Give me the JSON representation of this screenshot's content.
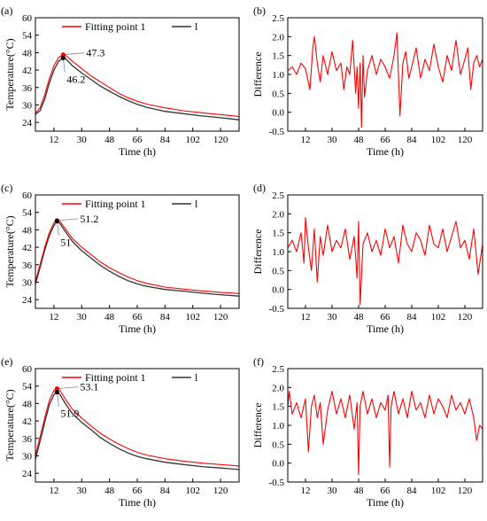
{
  "colors": {
    "fit": "#ff0000",
    "measured": "#333333",
    "diff": "#ff0000"
  },
  "chart_data": [
    {
      "panel": "(a)",
      "type": "line",
      "xlabel": "Time (h)",
      "ylabel": "Temperature(°C)",
      "xlim": [
        0,
        132
      ],
      "ylim": [
        21,
        60
      ],
      "xticks": [
        12,
        30,
        48,
        66,
        84,
        102,
        120
      ],
      "yticks": [
        24,
        30,
        36,
        42,
        48,
        54,
        60
      ],
      "legend": {
        "position": "top",
        "entries": [
          "Fitting point 1",
          "l"
        ]
      },
      "series": [
        {
          "name": "Fitting point 1",
          "color": "#ff0000",
          "x": [
            0,
            3,
            6,
            9,
            12,
            15,
            18,
            20,
            24,
            30,
            36,
            42,
            48,
            54,
            60,
            66,
            72,
            84,
            96,
            108,
            120,
            132
          ],
          "y": [
            27.2,
            29,
            33.5,
            39,
            43.5,
            46.3,
            47.3,
            46.9,
            45,
            42.5,
            40,
            38,
            36,
            34,
            32.5,
            31.3,
            30.3,
            29,
            28,
            27.3,
            26.7,
            26
          ]
        },
        {
          "name": "l",
          "color": "#333333",
          "x": [
            0,
            3,
            6,
            9,
            12,
            15,
            18,
            20,
            24,
            30,
            36,
            42,
            48,
            54,
            60,
            66,
            72,
            84,
            96,
            108,
            120,
            132
          ],
          "y": [
            26.8,
            28,
            32,
            37.5,
            42,
            45,
            46.2,
            45.7,
            43.5,
            41,
            38.8,
            36.5,
            34.7,
            33,
            31.5,
            30.2,
            29.2,
            27.8,
            27,
            26.2,
            25.6,
            24.9
          ]
        }
      ],
      "annotations": [
        {
          "text": "47.3",
          "x": 18,
          "y": 47.3,
          "series": "Fitting point 1"
        },
        {
          "text": "46.2",
          "x": 18,
          "y": 46.2,
          "series": "l"
        }
      ]
    },
    {
      "panel": "(b)",
      "type": "line",
      "xlabel": "Time (h)",
      "ylabel": "Difference",
      "xlim": [
        0,
        132
      ],
      "ylim": [
        -0.5,
        2.5
      ],
      "xticks": [
        12,
        30,
        48,
        66,
        84,
        102,
        120
      ],
      "yticks": [
        -0.5,
        0.0,
        0.5,
        1.0,
        1.5,
        2.0,
        2.5
      ],
      "series": [
        {
          "name": "",
          "color": "#ff0000",
          "x": [
            0,
            3,
            6,
            9,
            12,
            15,
            17,
            18,
            20,
            22,
            24,
            27,
            30,
            33,
            36,
            38,
            40,
            42,
            44,
            46,
            47,
            48,
            49,
            50,
            51,
            52,
            54,
            57,
            60,
            63,
            66,
            69,
            72,
            74,
            75,
            76,
            78,
            80,
            82,
            84,
            87,
            90,
            93,
            96,
            99,
            102,
            105,
            108,
            111,
            114,
            117,
            120,
            122,
            124,
            126,
            128,
            130,
            132
          ],
          "y": [
            1.1,
            1.2,
            1.0,
            1.3,
            1.15,
            0.6,
            1.7,
            2.0,
            1.3,
            0.8,
            1.5,
            1.0,
            1.6,
            1.1,
            1.3,
            0.6,
            1.2,
            1.0,
            1.9,
            0.5,
            1.2,
            0.1,
            1.3,
            -0.4,
            1.5,
            0.4,
            1.1,
            1.5,
            1.0,
            1.4,
            1.2,
            0.9,
            1.5,
            2.1,
            1.0,
            -0.1,
            1.3,
            1.6,
            0.9,
            1.2,
            1.7,
            0.9,
            1.4,
            1.1,
            1.8,
            1.2,
            0.8,
            1.5,
            1.1,
            1.9,
            1.0,
            1.4,
            1.7,
            0.6,
            1.3,
            1.5,
            1.2,
            1.4
          ]
        }
      ]
    },
    {
      "panel": "(c)",
      "type": "line",
      "xlabel": "Time (h)",
      "ylabel": "Temperature(°C)",
      "xlim": [
        0,
        132
      ],
      "ylim": [
        21,
        60
      ],
      "xticks": [
        12,
        30,
        48,
        66,
        84,
        102,
        120
      ],
      "yticks": [
        24,
        30,
        36,
        42,
        48,
        54,
        60
      ],
      "legend": {
        "position": "top",
        "entries": [
          "Fitting point 1",
          "l"
        ]
      },
      "series": [
        {
          "name": "Fitting point 1",
          "color": "#ff0000",
          "x": [
            0,
            3,
            6,
            9,
            12,
            14,
            16,
            20,
            24,
            30,
            36,
            42,
            48,
            54,
            60,
            66,
            72,
            84,
            96,
            108,
            120,
            132
          ],
          "y": [
            30.3,
            36,
            42,
            47,
            50.5,
            51.2,
            50.8,
            48,
            45,
            42,
            39.5,
            37,
            35,
            33.3,
            31.8,
            30.5,
            29.6,
            28.3,
            27.6,
            27,
            26.5,
            26.1
          ]
        },
        {
          "name": "l",
          "color": "#333333",
          "x": [
            0,
            3,
            6,
            9,
            12,
            14,
            16,
            20,
            24,
            30,
            36,
            42,
            48,
            54,
            60,
            66,
            72,
            84,
            96,
            108,
            120,
            132
          ],
          "y": [
            29.3,
            35,
            41,
            46,
            49.5,
            51,
            50,
            47,
            44,
            40.8,
            38.3,
            35.8,
            33.8,
            32,
            30.5,
            29.4,
            28.6,
            27.5,
            26.9,
            26.2,
            25.7,
            25.2
          ]
        }
      ],
      "annotations": [
        {
          "text": "51.2",
          "x": 14,
          "y": 51.2,
          "series": "Fitting point 1"
        },
        {
          "text": "51",
          "x": 14,
          "y": 51,
          "series": "l"
        }
      ]
    },
    {
      "panel": "(d)",
      "type": "line",
      "xlabel": "Time (h)",
      "ylabel": "Difference",
      "xlim": [
        0,
        132
      ],
      "ylim": [
        -0.5,
        2.5
      ],
      "xticks": [
        12,
        30,
        48,
        66,
        84,
        102,
        120
      ],
      "yticks": [
        -0.5,
        0.0,
        0.5,
        1.0,
        1.5,
        2.0,
        2.5
      ],
      "series": [
        {
          "name": "",
          "color": "#ff0000",
          "x": [
            0,
            3,
            6,
            9,
            11,
            12,
            14,
            16,
            18,
            20,
            22,
            24,
            27,
            30,
            33,
            36,
            39,
            42,
            45,
            47,
            48,
            49,
            51,
            54,
            57,
            60,
            63,
            66,
            69,
            72,
            75,
            78,
            81,
            84,
            87,
            90,
            93,
            96,
            99,
            102,
            105,
            108,
            111,
            114,
            117,
            120,
            123,
            126,
            129,
            132
          ],
          "y": [
            1.1,
            1.3,
            1.0,
            1.5,
            0.7,
            1.9,
            1.1,
            0.5,
            1.6,
            0.2,
            1.4,
            0.9,
            1.7,
            1.0,
            1.3,
            1.1,
            1.6,
            0.8,
            1.4,
            0.3,
            1.8,
            -0.4,
            1.2,
            1.5,
            1.0,
            1.3,
            0.9,
            1.6,
            1.1,
            1.4,
            0.7,
            1.7,
            1.2,
            1.0,
            1.5,
            1.3,
            0.9,
            1.7,
            1.2,
            1.1,
            1.6,
            1.0,
            1.4,
            1.8,
            1.1,
            1.3,
            0.8,
            1.6,
            0.4,
            1.2
          ]
        }
      ]
    },
    {
      "panel": "(e)",
      "type": "line",
      "xlabel": "Time (h)",
      "ylabel": "Temperature(°C)",
      "xlim": [
        0,
        132
      ],
      "ylim": [
        21,
        60
      ],
      "xticks": [
        12,
        30,
        48,
        66,
        84,
        102,
        120
      ],
      "yticks": [
        24,
        30,
        36,
        42,
        48,
        54,
        60
      ],
      "legend": {
        "position": "top",
        "entries": [
          "Fitting point 1",
          "l"
        ]
      },
      "series": [
        {
          "name": "Fitting point 1",
          "color": "#ff0000",
          "x": [
            0,
            3,
            6,
            9,
            12,
            14,
            16,
            20,
            24,
            30,
            36,
            42,
            48,
            54,
            60,
            66,
            72,
            84,
            96,
            108,
            120,
            132
          ],
          "y": [
            30,
            36.5,
            43,
            49,
            52.5,
            53.1,
            52.5,
            49,
            46,
            43,
            40.3,
            37.8,
            35.8,
            34,
            32.5,
            31.2,
            30.3,
            29,
            28.2,
            27.5,
            27,
            26.5
          ]
        },
        {
          "name": "l",
          "color": "#333333",
          "x": [
            0,
            3,
            6,
            9,
            12,
            14,
            16,
            20,
            24,
            30,
            36,
            42,
            48,
            54,
            60,
            66,
            72,
            84,
            96,
            108,
            120,
            132
          ],
          "y": [
            28.8,
            35,
            41.5,
            47.5,
            51,
            51.9,
            51,
            47.5,
            44.5,
            41.5,
            39,
            36.3,
            34.3,
            32.5,
            31,
            29.8,
            29,
            27.8,
            27,
            26.3,
            25.8,
            25.3
          ]
        }
      ],
      "annotations": [
        {
          "text": "53.1",
          "x": 14,
          "y": 53.1,
          "series": "Fitting point 1"
        },
        {
          "text": "51.9",
          "x": 14,
          "y": 51.9,
          "series": "l"
        }
      ]
    },
    {
      "panel": "(f)",
      "type": "line",
      "xlabel": "Time (h)",
      "ylabel": "Difference",
      "xlim": [
        0,
        132
      ],
      "ylim": [
        -0.5,
        2.5
      ],
      "xticks": [
        12,
        30,
        48,
        66,
        84,
        102,
        120
      ],
      "yticks": [
        -0.5,
        0.0,
        0.5,
        1.0,
        1.5,
        2.0,
        2.5
      ],
      "series": [
        {
          "name": "",
          "color": "#ff0000",
          "x": [
            0,
            1,
            3,
            6,
            9,
            12,
            14,
            16,
            18,
            20,
            22,
            24,
            27,
            30,
            33,
            36,
            39,
            42,
            45,
            47,
            48,
            49,
            51,
            54,
            57,
            60,
            63,
            66,
            68,
            69,
            70,
            72,
            75,
            78,
            81,
            84,
            87,
            90,
            93,
            96,
            99,
            102,
            105,
            108,
            111,
            114,
            117,
            120,
            123,
            126,
            128,
            130,
            132
          ],
          "y": [
            1.5,
            1.9,
            1.3,
            1.6,
            1.2,
            1.7,
            0.3,
            1.5,
            1.8,
            1.2,
            1.6,
            0.5,
            1.4,
            1.9,
            1.3,
            1.7,
            1.2,
            1.8,
            0.9,
            1.6,
            -0.3,
            1.5,
            1.9,
            1.3,
            1.7,
            1.2,
            1.6,
            1.4,
            1.8,
            -0.1,
            1.5,
            1.9,
            1.3,
            1.7,
            1.2,
            1.9,
            1.4,
            1.6,
            1.2,
            1.8,
            1.3,
            1.7,
            1.5,
            1.2,
            1.8,
            1.4,
            1.6,
            1.3,
            1.7,
            1.2,
            0.6,
            1.0,
            0.9
          ]
        }
      ]
    }
  ]
}
